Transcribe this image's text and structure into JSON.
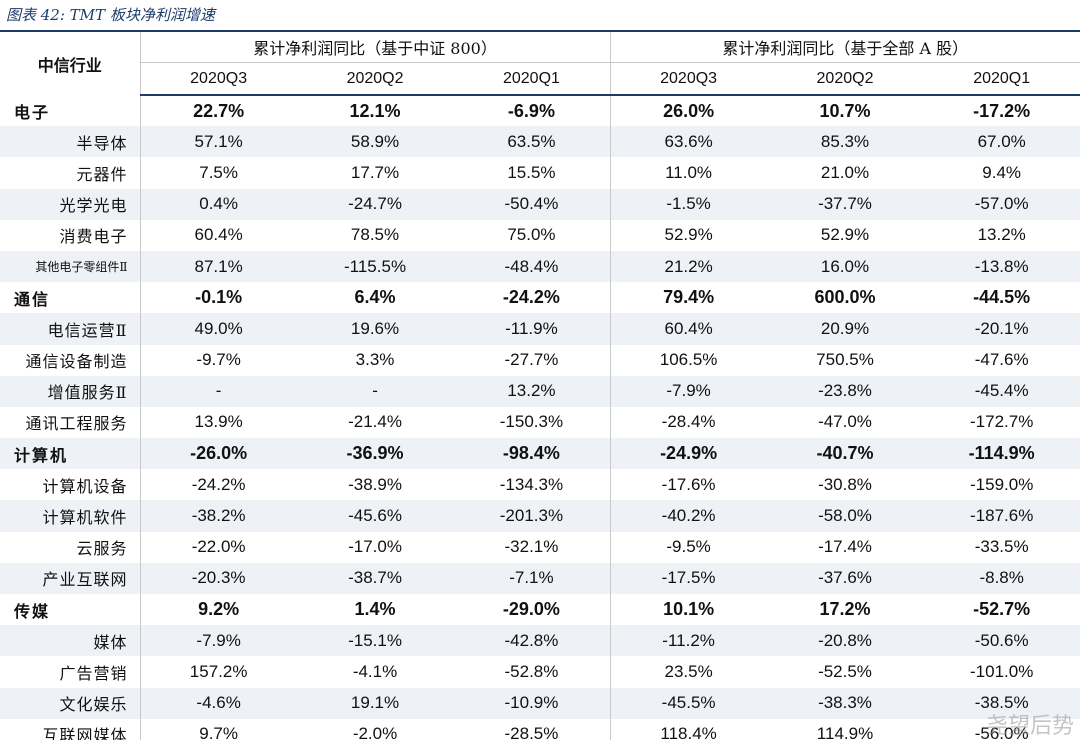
{
  "caption": "图表 42:  TMT 板块净利润增速",
  "header": {
    "corner": "中信行业",
    "group_left": "累计净利润同比（基于中证 800）",
    "group_right": "累计净利润同比（基于全部 A 股）",
    "quarters": [
      "2020Q3",
      "2020Q2",
      "2020Q1",
      "2020Q3",
      "2020Q2",
      "2020Q1"
    ]
  },
  "rows": [
    {
      "name": "电子",
      "sector": true,
      "values": [
        "22.7%",
        "12.1%",
        "-6.9%",
        "26.0%",
        "10.7%",
        "-17.2%"
      ]
    },
    {
      "name": "半导体",
      "sector": false,
      "values": [
        "57.1%",
        "58.9%",
        "63.5%",
        "63.6%",
        "85.3%",
        "67.0%"
      ]
    },
    {
      "name": "元器件",
      "sector": false,
      "values": [
        "7.5%",
        "17.7%",
        "15.5%",
        "11.0%",
        "21.0%",
        "9.4%"
      ]
    },
    {
      "name": "光学光电",
      "sector": false,
      "values": [
        "0.4%",
        "-24.7%",
        "-50.4%",
        "-1.5%",
        "-37.7%",
        "-57.0%"
      ]
    },
    {
      "name": "消费电子",
      "sector": false,
      "values": [
        "60.4%",
        "78.5%",
        "75.0%",
        "52.9%",
        "52.9%",
        "13.2%"
      ]
    },
    {
      "name": "其他电子零组件Ⅱ",
      "sector": false,
      "small": true,
      "values": [
        "87.1%",
        "-115.5%",
        "-48.4%",
        "21.2%",
        "16.0%",
        "-13.8%"
      ]
    },
    {
      "name": "通信",
      "sector": true,
      "values": [
        "-0.1%",
        "6.4%",
        "-24.2%",
        "79.4%",
        "600.0%",
        "-44.5%"
      ]
    },
    {
      "name": "电信运营Ⅱ",
      "sector": false,
      "values": [
        "49.0%",
        "19.6%",
        "-11.9%",
        "60.4%",
        "20.9%",
        "-20.1%"
      ]
    },
    {
      "name": "通信设备制造",
      "sector": false,
      "values": [
        "-9.7%",
        "3.3%",
        "-27.7%",
        "106.5%",
        "750.5%",
        "-47.6%"
      ]
    },
    {
      "name": "增值服务Ⅱ",
      "sector": false,
      "values": [
        "-",
        "-",
        "13.2%",
        "-7.9%",
        "-23.8%",
        "-45.4%"
      ]
    },
    {
      "name": "通讯工程服务",
      "sector": false,
      "values": [
        "13.9%",
        "-21.4%",
        "-150.3%",
        "-28.4%",
        "-47.0%",
        "-172.7%"
      ]
    },
    {
      "name": "计算机",
      "sector": true,
      "values": [
        "-26.0%",
        "-36.9%",
        "-98.4%",
        "-24.9%",
        "-40.7%",
        "-114.9%"
      ]
    },
    {
      "name": "计算机设备",
      "sector": false,
      "values": [
        "-24.2%",
        "-38.9%",
        "-134.3%",
        "-17.6%",
        "-30.8%",
        "-159.0%"
      ]
    },
    {
      "name": "计算机软件",
      "sector": false,
      "values": [
        "-38.2%",
        "-45.6%",
        "-201.3%",
        "-40.2%",
        "-58.0%",
        "-187.6%"
      ]
    },
    {
      "name": "云服务",
      "sector": false,
      "values": [
        "-22.0%",
        "-17.0%",
        "-32.1%",
        "-9.5%",
        "-17.4%",
        "-33.5%"
      ]
    },
    {
      "name": "产业互联网",
      "sector": false,
      "values": [
        "-20.3%",
        "-38.7%",
        "-7.1%",
        "-17.5%",
        "-37.6%",
        "-8.8%"
      ]
    },
    {
      "name": "传媒",
      "sector": true,
      "values": [
        "9.2%",
        "1.4%",
        "-29.0%",
        "10.1%",
        "17.2%",
        "-52.7%"
      ]
    },
    {
      "name": "媒体",
      "sector": false,
      "values": [
        "-7.9%",
        "-15.1%",
        "-42.8%",
        "-11.2%",
        "-20.8%",
        "-50.6%"
      ]
    },
    {
      "name": "广告营销",
      "sector": false,
      "values": [
        "157.2%",
        "-4.1%",
        "-52.8%",
        "23.5%",
        "-52.5%",
        "-101.0%"
      ]
    },
    {
      "name": "文化娱乐",
      "sector": false,
      "values": [
        "-4.6%",
        "19.1%",
        "-10.9%",
        "-45.5%",
        "-38.3%",
        "-38.5%"
      ]
    },
    {
      "name": "互联网媒体",
      "sector": false,
      "values": [
        "9.7%",
        "-2.0%",
        "-28.5%",
        "118.4%",
        "114.9%",
        "-56.0%"
      ]
    }
  ],
  "watermark": "尧望后势"
}
